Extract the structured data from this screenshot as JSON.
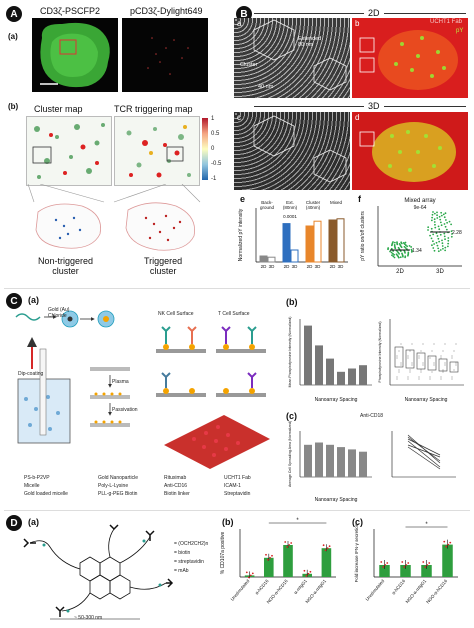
{
  "panelA": {
    "tag": "A",
    "sub_a": "(a)",
    "title_left": "CD3ζ-PSCFP2",
    "title_right": "pCD3ζ-Dylight649",
    "sub_b": "(b)",
    "cluster_map": "Cluster map",
    "tcr_map": "TCR triggering map",
    "colorbar_ticks": [
      "1",
      "0.5",
      "0",
      "-0.5",
      "-1"
    ],
    "label_non": "Non-triggered\ncluster",
    "label_trig": "Triggered\ncluster"
  },
  "panelB": {
    "tag": "B",
    "header_2d": "2D",
    "header_3d": "3D",
    "img_a": "a",
    "img_b": "b",
    "img_c": "c",
    "img_d": "d",
    "extended_label": "Extended\n80 nm",
    "cluster_label": "Cluster",
    "nm40": "40 nm",
    "ucht": "UCHT1 Fab",
    "py": "pY",
    "e_label": "e",
    "f_label": "f",
    "e_ylabel": "Normalized pY intensity",
    "e_categories": [
      "Back-\nground",
      "Ext.\n(80nm)",
      "Cluster\n(40nm)",
      "Mixed"
    ],
    "e_sig": "0.0001",
    "e_xticks": [
      "2D",
      "3D",
      "2D",
      "3D",
      "2D",
      "3D",
      "2D",
      "3D"
    ],
    "f_title": "Mixed array",
    "f_pval": "9e-64",
    "f_ylabel": "pY ratio on/off clusters",
    "f_val1": "1.34",
    "f_val2": "2.28",
    "f_xticks": [
      "2D",
      "3D"
    ]
  },
  "panelC": {
    "tag": "C",
    "sub_a": "(a)",
    "sub_b": "(b)",
    "sub_c": "(c)",
    "nk_surface": "NK Cell Surface",
    "t_surface": "T Cell Surface",
    "dip_coating": "Dip-coating",
    "plasma": "Plasma",
    "passivation": "Passivation",
    "gold_label": "Gold (Au)\nChloride",
    "nanoarray_spacing": "Nanoarray Spacing",
    "anti_cd18": "Anti-CD18",
    "legend": [
      "PS-b-P2VP",
      "Micelle",
      "Gold loaded micelle",
      "Gold Nanoparticle",
      "Poly-L-Lysine",
      "PLL-g-PEG Biotin",
      "Rituximab",
      "Anti-CD16",
      "Biotin linker",
      "UCHT1 Fab",
      "ICAM-1",
      "Streptavidin"
    ],
    "b_ylabel": "Mean Phosphotyrosine Intensity (Normalized)",
    "b2_ylabel": "Phosphotyrosine Intensity (Normalized)",
    "c_ylabel": "Average Cell Spreading Area (Normalized)"
  },
  "panelD": {
    "tag": "D",
    "sub_a": "(a)",
    "sub_b": "(b)",
    "sub_c": "(c)",
    "legend_items": [
      "= (OCH2CH2)n",
      "= biotin",
      "= streptavidin",
      "= mAb"
    ],
    "scale": "~ 50-300 nm",
    "b_ylabel": "% CD107a positive",
    "c_ylabel": "Fold increase IFN-γ secretion",
    "b_xticks": [
      "Unstimulated",
      "α-hCD16",
      "NGO-α-hCD16",
      "α-mIgG1",
      "NGO-α-mIgG1"
    ],
    "c_xticks": [
      "Unstimulated",
      "α-hCD16",
      "NGO-α-mIgG1",
      "NGO-α-hCD16"
    ],
    "star": "*",
    "bar_color": "#2e9e3e",
    "point_color": "#d62728"
  },
  "chart_data": [
    {
      "type": "bar",
      "id": "B-e",
      "ylabel": "Normalized pY intensity",
      "categories": [
        "Back-ground",
        "Ext. (80nm)",
        "Cluster (40nm)",
        "Mixed"
      ],
      "series": [
        {
          "name": "2D",
          "values": [
            0.45,
            0.72,
            0.7,
            0.75
          ]
        },
        {
          "name": "3D",
          "values": [
            0.44,
            0.5,
            0.74,
            0.76
          ]
        }
      ],
      "ylim": [
        0.4,
        0.85
      ],
      "annotations": [
        "0.0001"
      ]
    },
    {
      "type": "scatter",
      "id": "B-f",
      "title": "Mixed array",
      "ylabel": "pY ratio on/off clusters",
      "categories": [
        "2D",
        "3D"
      ],
      "medians": [
        1.34,
        2.28
      ],
      "annotations": [
        "9e-64"
      ]
    },
    {
      "type": "bar",
      "id": "D-b",
      "ylabel": "% CD107a positive",
      "categories": [
        "Unstimulated",
        "α-hCD16",
        "NGO-α-hCD16",
        "α-mIgG1",
        "NGO-α-mIgG1"
      ],
      "values": [
        0.5,
        6.0,
        10.0,
        1.0,
        9.0
      ],
      "ylim": [
        0,
        15
      ]
    },
    {
      "type": "bar",
      "id": "D-c",
      "ylabel": "Fold increase IFN-γ secretion",
      "categories": [
        "Unstimulated",
        "α-hCD16",
        "NGO-α-mIgG1",
        "NGO-α-hCD16"
      ],
      "values": [
        1.0,
        1.0,
        1.0,
        2.7
      ],
      "ylim": [
        0,
        4
      ]
    }
  ]
}
